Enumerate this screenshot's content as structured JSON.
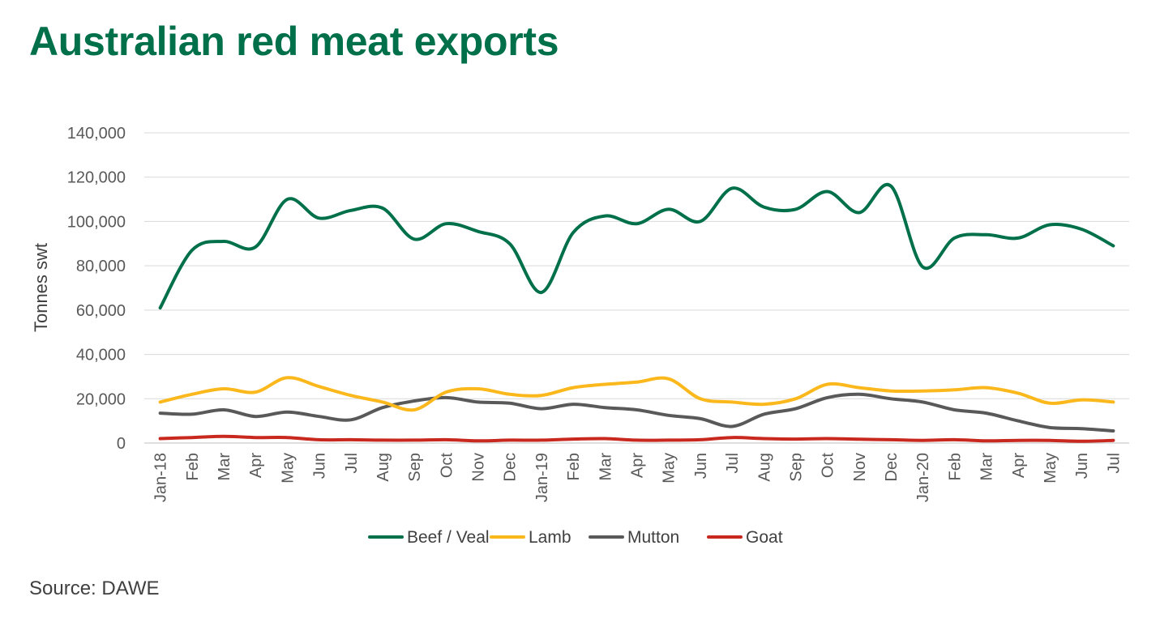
{
  "chart_data": {
    "type": "line",
    "title": "Australian red meat exports",
    "ylabel": "Tonnes swt",
    "xlabel": "",
    "source": "Source: DAWE",
    "ylim": [
      0,
      140000
    ],
    "y_ticks": [
      0,
      20000,
      40000,
      60000,
      80000,
      100000,
      120000,
      140000
    ],
    "y_tick_labels": [
      "0",
      "20,000",
      "40,000",
      "60,000",
      "80,000",
      "100,000",
      "120,000",
      "140,000"
    ],
    "categories": [
      "Jan-18",
      "Feb",
      "Mar",
      "Apr",
      "May",
      "Jun",
      "Jul",
      "Aug",
      "Sep",
      "Oct",
      "Nov",
      "Dec",
      "Jan-19",
      "Feb",
      "Mar",
      "Apr",
      "May",
      "Jun",
      "Jul",
      "Aug",
      "Sep",
      "Oct",
      "Nov",
      "Dec",
      "Jan-20",
      "Feb",
      "Mar",
      "Apr",
      "May",
      "Jun",
      "Jul"
    ],
    "grid": true,
    "legend_position": "bottom",
    "series": [
      {
        "name": "Beef / Veal",
        "color": "#00704A",
        "values": [
          61000,
          87000,
          91000,
          88500,
          110000,
          101500,
          105000,
          106000,
          92000,
          99000,
          95500,
          90000,
          68000,
          95000,
          102500,
          99000,
          105500,
          100000,
          115000,
          106500,
          105500,
          113500,
          104000,
          116000,
          79500,
          92500,
          94000,
          92500,
          98500,
          96500,
          89000
        ]
      },
      {
        "name": "Lamb",
        "color": "#FBB81C",
        "values": [
          18500,
          22000,
          24500,
          23000,
          29500,
          25500,
          21500,
          18500,
          15000,
          23000,
          24500,
          22000,
          21500,
          25000,
          26500,
          27500,
          29000,
          20000,
          18500,
          17500,
          20000,
          26500,
          25000,
          23500,
          23500,
          24000,
          25000,
          22500,
          18000,
          19500,
          18500
        ]
      },
      {
        "name": "Mutton",
        "color": "#595959",
        "values": [
          13500,
          13000,
          15000,
          12000,
          14000,
          12000,
          10500,
          16000,
          19000,
          20500,
          18500,
          18000,
          15500,
          17500,
          16000,
          15000,
          12500,
          11000,
          7500,
          13000,
          15500,
          20500,
          22000,
          20000,
          18500,
          15000,
          13500,
          10000,
          7000,
          6500,
          5500
        ]
      },
      {
        "name": "Goat",
        "color": "#C8281E",
        "values": [
          2000,
          2500,
          3000,
          2500,
          2500,
          1500,
          1500,
          1300,
          1300,
          1500,
          1000,
          1300,
          1300,
          1800,
          2000,
          1300,
          1300,
          1500,
          2500,
          2000,
          1800,
          2000,
          1700,
          1500,
          1200,
          1500,
          1000,
          1200,
          1200,
          800,
          1200
        ]
      }
    ]
  }
}
